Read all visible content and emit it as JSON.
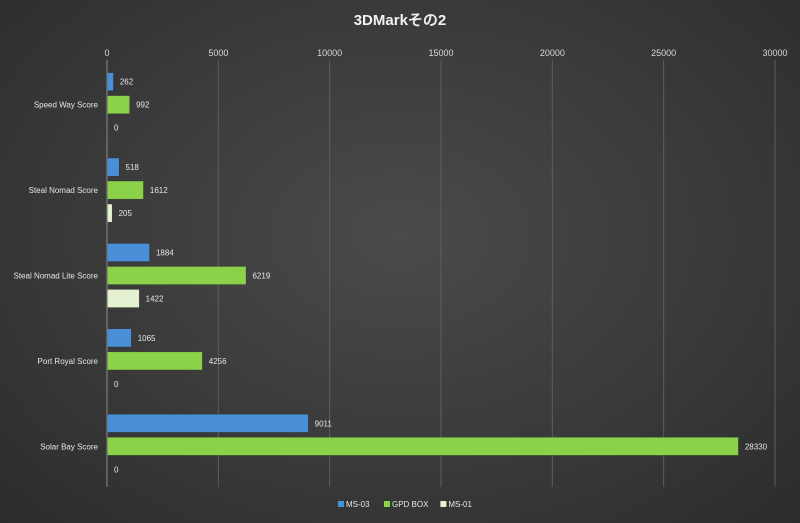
{
  "chart_data": {
    "type": "bar",
    "orientation": "horizontal",
    "title": "3DMarkその2",
    "xlabel": "",
    "ylabel": "",
    "xlim": [
      0,
      30000
    ],
    "x_ticks": [
      0,
      5000,
      10000,
      15000,
      20000,
      25000,
      30000
    ],
    "x_axis_position": "top",
    "grid": true,
    "legend_position": "bottom",
    "categories": [
      "Speed Way Score",
      "Steal Nomad Score",
      "Steal Nomad Lite Score",
      "Port Royal Score",
      "Solar Bay Score"
    ],
    "series": [
      {
        "name": "MS-03",
        "color": "#4a90d9",
        "values": [
          262,
          518,
          1884,
          1065,
          9011
        ]
      },
      {
        "name": "GPD BOX",
        "color": "#8bd14a",
        "values": [
          992,
          1612,
          6219,
          4256,
          28330
        ]
      },
      {
        "name": "MS-01",
        "color": "#e4f2d2",
        "values": [
          0,
          205,
          1422,
          0,
          0
        ]
      }
    ]
  }
}
